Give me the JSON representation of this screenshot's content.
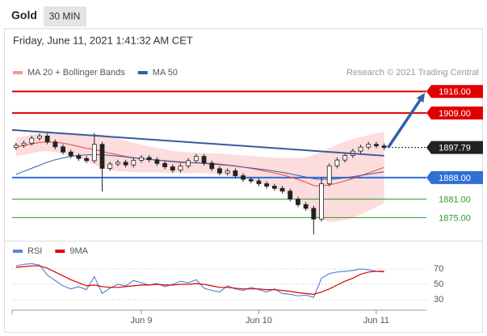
{
  "header": {
    "title": "Gold",
    "timeframe": "30 MIN",
    "datetime": "Friday, June 11, 2021 1:41:32 AM CET",
    "source": "Research © 2021 Trading Central"
  },
  "chart_data": [
    {
      "type": "candlestick",
      "xlim": [
        -0.5,
        52.4
      ],
      "ylim": [
        1868,
        1920
      ],
      "up_color": "#ffffff",
      "down_color": "#222222",
      "wick_color": "#222222",
      "open": [
        1897.8,
        1898.5,
        1899.2,
        1900.8,
        1901.5,
        1899.6,
        1898.0,
        1896.3,
        1895.1,
        1894.2,
        1893.5,
        1898.8,
        1891.0,
        1892.4,
        1893.0,
        1892.1,
        1893.6,
        1894.5,
        1893.8,
        1892.6,
        1891.5,
        1890.4,
        1891.8,
        1893.5,
        1894.9,
        1892.7,
        1890.9,
        1889.5,
        1890.2,
        1888.6,
        1887.4,
        1886.9,
        1886.0,
        1885.2,
        1884.5,
        1883.6,
        1881.0,
        1879.2,
        1878.0,
        1874.5,
        1886.0,
        1891.8,
        1893.7,
        1895.2,
        1896.6,
        1897.9,
        1898.8,
        1898.3
      ],
      "high": [
        1899.3,
        1900.0,
        1901.6,
        1902.3,
        1902.3,
        1900.4,
        1898.8,
        1897.1,
        1895.9,
        1895.0,
        1902.5,
        1899.6,
        1893.2,
        1893.8,
        1893.8,
        1894.4,
        1895.3,
        1895.3,
        1894.6,
        1893.4,
        1892.3,
        1892.6,
        1894.3,
        1895.7,
        1895.7,
        1893.5,
        1891.7,
        1891.0,
        1891.0,
        1889.4,
        1888.2,
        1887.7,
        1886.8,
        1886.0,
        1885.3,
        1884.4,
        1881.8,
        1880.0,
        1878.8,
        1888.0,
        1892.6,
        1894.5,
        1896.0,
        1897.4,
        1898.7,
        1899.6,
        1899.6,
        1899.1
      ],
      "low": [
        1897.0,
        1897.7,
        1898.4,
        1900.0,
        1898.8,
        1897.2,
        1895.5,
        1894.3,
        1893.4,
        1892.7,
        1892.7,
        1883.5,
        1890.2,
        1891.6,
        1891.3,
        1891.3,
        1892.8,
        1893.0,
        1891.8,
        1890.7,
        1889.6,
        1889.6,
        1891.0,
        1892.7,
        1891.9,
        1890.1,
        1888.7,
        1888.7,
        1887.8,
        1886.6,
        1886.1,
        1885.2,
        1884.4,
        1883.7,
        1882.8,
        1880.2,
        1878.4,
        1877.2,
        1869.5,
        1873.7,
        1885.2,
        1891.0,
        1892.9,
        1894.4,
        1895.8,
        1897.1,
        1897.5,
        1897.0
      ],
      "close": [
        1898.5,
        1899.2,
        1900.8,
        1901.5,
        1899.6,
        1898.0,
        1896.3,
        1895.1,
        1894.2,
        1893.5,
        1898.8,
        1891.0,
        1892.4,
        1893.0,
        1892.1,
        1893.6,
        1894.5,
        1893.8,
        1892.6,
        1891.5,
        1890.4,
        1891.8,
        1893.5,
        1894.9,
        1892.7,
        1890.9,
        1889.5,
        1890.2,
        1888.6,
        1887.4,
        1886.9,
        1886.0,
        1885.2,
        1884.5,
        1883.6,
        1881.0,
        1879.2,
        1878.0,
        1874.5,
        1886.0,
        1891.8,
        1893.7,
        1895.2,
        1896.6,
        1897.9,
        1898.8,
        1898.3,
        1897.8
      ],
      "series": [
        {
          "name": "MA 20 + Bollinger Bands",
          "color": "#e8453c",
          "band_color": "#fbd3d3",
          "legend_color": "#f49a9a",
          "values": [
            1898.0,
            1898.4,
            1898.9,
            1899.4,
            1899.6,
            1899.5,
            1899.2,
            1898.7,
            1898.1,
            1897.5,
            1897.2,
            1896.5,
            1895.9,
            1895.4,
            1894.9,
            1894.5,
            1894.2,
            1893.9,
            1893.7,
            1893.4,
            1893.1,
            1892.9,
            1892.8,
            1892.8,
            1892.7,
            1892.6,
            1892.4,
            1892.1,
            1891.8,
            1891.4,
            1891.0,
            1890.5,
            1890.0,
            1889.5,
            1888.9,
            1888.2,
            1887.4,
            1886.5,
            1885.4,
            1885.3,
            1885.6,
            1886.2,
            1886.9,
            1887.7,
            1888.6,
            1889.5,
            1890.4,
            1891.3
          ],
          "upper": [
            1901.0,
            1901.4,
            1901.9,
            1902.4,
            1902.6,
            1902.7,
            1902.6,
            1902.3,
            1901.9,
            1901.5,
            1902.2,
            1902.0,
            1901.4,
            1900.7,
            1899.9,
            1899.3,
            1898.7,
            1898.1,
            1897.7,
            1897.2,
            1896.7,
            1896.4,
            1896.2,
            1896.1,
            1896.0,
            1895.9,
            1895.8,
            1895.6,
            1895.4,
            1895.2,
            1895.0,
            1894.8,
            1894.6,
            1894.5,
            1894.4,
            1894.4,
            1894.4,
            1894.5,
            1895.4,
            1896.3,
            1897.6,
            1898.7,
            1899.7,
            1900.5,
            1901.2,
            1901.8,
            1902.4,
            1902.8
          ],
          "lower": [
            1895.0,
            1895.4,
            1895.9,
            1896.4,
            1896.6,
            1896.3,
            1895.8,
            1895.1,
            1894.3,
            1893.5,
            1892.2,
            1891.0,
            1890.4,
            1890.1,
            1889.9,
            1889.7,
            1889.7,
            1889.7,
            1889.7,
            1889.6,
            1889.5,
            1889.4,
            1889.4,
            1889.5,
            1889.4,
            1889.3,
            1889.0,
            1888.6,
            1888.2,
            1887.6,
            1887.0,
            1886.2,
            1885.4,
            1884.5,
            1883.4,
            1882.0,
            1880.4,
            1878.5,
            1875.4,
            1874.3,
            1873.6,
            1873.7,
            1874.1,
            1874.9,
            1876.0,
            1877.2,
            1878.4,
            1879.8
          ]
        },
        {
          "name": "MA 50",
          "color": "#2f5fa8",
          "values": [
            1889.0,
            1890.0,
            1891.0,
            1892.0,
            1893.0,
            1893.8,
            1894.4,
            1894.9,
            1895.2,
            1895.4,
            1895.5,
            1895.4,
            1895.2,
            1895.0,
            1894.7,
            1894.4,
            1894.1,
            1893.9,
            1893.7,
            1893.5,
            1893.3,
            1893.1,
            1892.9,
            1892.8,
            1892.6,
            1892.4,
            1892.2,
            1892.0,
            1891.7,
            1891.4,
            1891.1,
            1890.8,
            1890.5,
            1890.1,
            1889.7,
            1889.2,
            1888.7,
            1888.2,
            1887.6,
            1887.4,
            1887.4,
            1887.6,
            1887.9,
            1888.3,
            1888.7,
            1889.1,
            1889.5,
            1889.9
          ]
        }
      ],
      "levels": [
        {
          "value": 1916,
          "label": "1916.00",
          "color": "#e00000",
          "boxed": true,
          "line": "solid"
        },
        {
          "value": 1909,
          "label": "1909.00",
          "color": "#e00000",
          "boxed": true,
          "line": "solid"
        },
        {
          "value": 1897.79,
          "label": "1897.79",
          "color": "#222222",
          "boxed": true,
          "line": "dotted"
        },
        {
          "value": 1888,
          "label": "1888.00",
          "color": "#2f6fd8",
          "boxed": true,
          "line": "solid"
        },
        {
          "value": 1881,
          "label": "1881.00",
          "color": "#2e9a2e",
          "boxed": false,
          "line": "solid"
        },
        {
          "value": 1875,
          "label": "1875.00",
          "color": "#2e9a2e",
          "boxed": false,
          "line": "solid"
        }
      ],
      "trendline": {
        "x": [
          -0.5,
          47
        ],
        "y": [
          1903.5,
          1895.1
        ],
        "color": "#3a5a9a"
      },
      "arrow": {
        "x": [
          47.5,
          52.2
        ],
        "y": [
          1897.7,
          1915.5
        ],
        "color": "#2f5fa8"
      }
    },
    {
      "type": "line",
      "xlim": [
        -0.5,
        52.4
      ],
      "ylim": [
        20,
        80
      ],
      "yticks": [
        70,
        50,
        30
      ],
      "grid": true,
      "xticks": [
        {
          "value": 16,
          "label": "Jun 9"
        },
        {
          "value": 31,
          "label": "Jun 10"
        },
        {
          "value": 46,
          "label": "Jun 11"
        }
      ],
      "series": [
        {
          "name": "RSI",
          "color": "#5b86d8",
          "values": [
            74,
            76,
            77,
            75,
            62,
            55,
            48,
            44,
            47,
            43,
            60,
            38,
            45,
            50,
            48,
            55,
            52,
            49,
            51,
            47,
            50,
            54,
            52,
            56,
            45,
            42,
            40,
            48,
            44,
            42,
            46,
            43,
            40,
            44,
            38,
            37,
            35,
            36,
            33,
            58,
            64,
            66,
            67,
            68,
            70,
            69,
            67,
            66
          ]
        },
        {
          "name": "9MA",
          "color": "#e00000",
          "values": [
            72,
            73,
            74,
            74,
            71,
            66,
            61,
            56,
            52,
            48,
            49,
            47,
            46,
            46,
            47,
            48,
            49,
            49,
            50,
            49,
            49,
            50,
            50,
            51,
            50,
            48,
            46,
            46,
            45,
            44,
            44,
            44,
            43,
            43,
            42,
            41,
            39,
            38,
            37,
            40,
            44,
            49,
            54,
            58,
            63,
            66,
            67,
            67
          ]
        }
      ]
    }
  ]
}
